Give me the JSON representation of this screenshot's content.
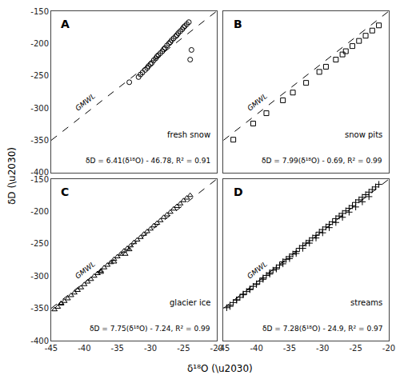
{
  "xlabel": "δ¹⁸O (\\u2030)",
  "ylabel": "δD (\\u2030)",
  "chart_data": [
    {
      "type": "scatter",
      "title": "A",
      "subtitle": "fresh snow",
      "annotations": [
        "GMWL",
        "δD = 6.41(δ¹⁸O) - 46.78, R² = 0.91"
      ],
      "xlim": [
        -45,
        -20
      ],
      "ylim": [
        -400,
        -150
      ],
      "xticks": [
        -45,
        -40,
        -35,
        -30,
        -25,
        -20
      ],
      "yticks": [
        -400,
        -350,
        -300,
        -250,
        -200,
        -150
      ],
      "tick_labels": "y",
      "series": [
        {
          "type": "line",
          "line_style": "dashed",
          "color": "#000000",
          "x": [
            -45,
            -20
          ],
          "values": [
            -350,
            -150
          ]
        },
        {
          "type": "scatter",
          "marker": "circle",
          "color": "#000000",
          "x": [
            -33.2,
            -31.8,
            -31.5,
            -31.2,
            -30.8,
            -30.5,
            -30.3,
            -30.0,
            -29.8,
            -29.5,
            -29.2,
            -29.0,
            -28.8,
            -28.5,
            -28.2,
            -28.0,
            -27.8,
            -27.5,
            -27.2,
            -27.0,
            -26.8,
            -26.5,
            -26.2,
            -26.0,
            -25.8,
            -25.5,
            -25.2,
            -25.0,
            -24.8,
            -24.5,
            -24.2,
            -24.0,
            -23.8
          ],
          "values": [
            -260,
            -252,
            -248,
            -245,
            -241,
            -238,
            -235,
            -232,
            -230,
            -226,
            -223,
            -220,
            -218,
            -215,
            -212,
            -209,
            -207,
            -203,
            -200,
            -198,
            -195,
            -192,
            -189,
            -187,
            -184,
            -181,
            -178,
            -175,
            -173,
            -170,
            -167,
            -225,
            -210
          ]
        }
      ]
    },
    {
      "type": "scatter",
      "title": "B",
      "subtitle": "snow pits",
      "annotations": [
        "GMWL",
        "δD = 7.99(δ¹⁸O) - 0.69, R² = 0.99"
      ],
      "xlim": [
        -45,
        -20
      ],
      "ylim": [
        -400,
        -150
      ],
      "xticks": [
        -45,
        -40,
        -35,
        -30,
        -25,
        -20
      ],
      "yticks": [
        -400,
        -350,
        -300,
        -250,
        -200,
        -150
      ],
      "tick_labels": false,
      "series": [
        {
          "type": "line",
          "line_style": "dashed",
          "color": "#000000",
          "x": [
            -45,
            -20
          ],
          "values": [
            -350,
            -150
          ]
        },
        {
          "type": "scatter",
          "marker": "square",
          "color": "#000000",
          "x": [
            -43.5,
            -40.5,
            -38.5,
            -36.0,
            -34.5,
            -32.5,
            -30.5,
            -29.5,
            -28.0,
            -27.0,
            -26.5,
            -25.5,
            -24.5,
            -23.5,
            -22.5,
            -21.5
          ],
          "values": [
            -349,
            -324,
            -308,
            -288,
            -276,
            -261,
            -244,
            -236,
            -225,
            -217,
            -212,
            -204,
            -196,
            -188,
            -180,
            -172
          ]
        }
      ]
    },
    {
      "type": "scatter",
      "title": "C",
      "subtitle": "glacier ice",
      "annotations": [
        "GMWL",
        "δD = 7.75(δ¹⁸O) - 7.24, R² = 0.99"
      ],
      "xlim": [
        -45,
        -20
      ],
      "ylim": [
        -400,
        -150
      ],
      "xticks": [
        -45,
        -40,
        -35,
        -30,
        -25,
        -20
      ],
      "yticks": [
        -400,
        -350,
        -300,
        -250,
        -200,
        -150
      ],
      "series": [
        {
          "type": "line",
          "line_style": "dashed",
          "color": "#000000",
          "x": [
            -45,
            -20
          ],
          "values": [
            -350,
            -150
          ]
        },
        {
          "type": "scatter",
          "marker": "triangle",
          "color": "#000000",
          "x": [
            -44.5,
            -44.0,
            -43.5,
            -43.0,
            -42.5,
            -42.0,
            -41.5,
            -41.0,
            -40.5,
            -40.0,
            -39.5,
            -39.0,
            -38.5,
            -38.0,
            -37.5,
            -37.0,
            -36.5,
            -36.0,
            -35.5,
            -35.0,
            -34.5,
            -34.0,
            -33.5,
            -33.0,
            -32.5,
            -32.0,
            -31.5,
            -31.0,
            -30.5,
            -30.0,
            -29.5,
            -29.0,
            -28.5,
            -28.0,
            -27.5,
            -27.0,
            -26.5,
            -26.0,
            -25.5,
            -25.0,
            -24.5,
            -24.0,
            -37.5,
            -35.5,
            -33.8,
            -43.5,
            -33.2
          ],
          "values": [
            -352,
            -348,
            -343,
            -339,
            -335,
            -330,
            -326,
            -322,
            -318,
            -313,
            -309,
            -305,
            -300,
            -296,
            -292,
            -287,
            -283,
            -279,
            -274,
            -270,
            -266,
            -261,
            -257,
            -253,
            -248,
            -244,
            -240,
            -235,
            -231,
            -227,
            -222,
            -218,
            -214,
            -209,
            -205,
            -201,
            -196,
            -192,
            -188,
            -183,
            -179,
            -175,
            -294,
            -278,
            -266,
            -342,
            -259
          ]
        }
      ]
    },
    {
      "type": "scatter",
      "title": "D",
      "subtitle": "streams",
      "annotations": [
        "GMWL",
        "δD = 7.28(δ¹⁸O) - 24.9, R² = 0.97"
      ],
      "xlim": [
        -45,
        -20
      ],
      "ylim": [
        -400,
        -150
      ],
      "xticks": [
        -45,
        -40,
        -35,
        -30,
        -25,
        -20
      ],
      "yticks": [
        -400,
        -350,
        -300,
        -250,
        -200,
        -150
      ],
      "tick_labels": "x",
      "series": [
        {
          "type": "line",
          "line_style": "dashed",
          "color": "#000000",
          "x": [
            -45,
            -20
          ],
          "values": [
            -350,
            -150
          ]
        },
        {
          "type": "scatter",
          "marker": "plus",
          "color": "#000000",
          "x": [
            -44.5,
            -44.0,
            -43.5,
            -43.0,
            -42.5,
            -42.0,
            -41.5,
            -41.0,
            -40.5,
            -40.0,
            -39.5,
            -39.0,
            -38.5,
            -38.0,
            -37.5,
            -37.0,
            -36.5,
            -36.0,
            -35.5,
            -35.0,
            -34.5,
            -34.0,
            -33.5,
            -33.0,
            -32.5,
            -32.0,
            -31.5,
            -31.0,
            -30.5,
            -30.0,
            -29.5,
            -29.0,
            -28.5,
            -28.0,
            -27.5,
            -27.0,
            -26.5,
            -26.0,
            -25.5,
            -25.0,
            -24.5,
            -24.0,
            -23.5,
            -23.0,
            -22.5,
            -22.0,
            -21.5,
            -44.0,
            -43.0,
            -42.0,
            -41.0,
            -40.0,
            -39.0,
            -38.0,
            -37.0,
            -36.0,
            -35.0,
            -34.0,
            -33.0,
            -32.0,
            -31.0,
            -30.0,
            -29.0,
            -28.0,
            -27.0,
            -26.0,
            -25.0,
            -24.0,
            -23.0
          ],
          "values": [
            -349,
            -345,
            -341,
            -337,
            -333,
            -328,
            -324,
            -320,
            -316,
            -312,
            -308,
            -303,
            -299,
            -295,
            -291,
            -287,
            -283,
            -278,
            -274,
            -270,
            -266,
            -262,
            -257,
            -253,
            -249,
            -245,
            -241,
            -237,
            -232,
            -228,
            -224,
            -220,
            -216,
            -211,
            -207,
            -203,
            -199,
            -195,
            -191,
            -186,
            -182,
            -178,
            -174,
            -170,
            -166,
            -162,
            -158,
            -347,
            -337,
            -329,
            -321,
            -313,
            -305,
            -297,
            -289,
            -281,
            -273,
            -265,
            -257,
            -249,
            -241,
            -233,
            -225,
            -217,
            -209,
            -201,
            -193,
            -185,
            -177
          ]
        }
      ]
    }
  ]
}
